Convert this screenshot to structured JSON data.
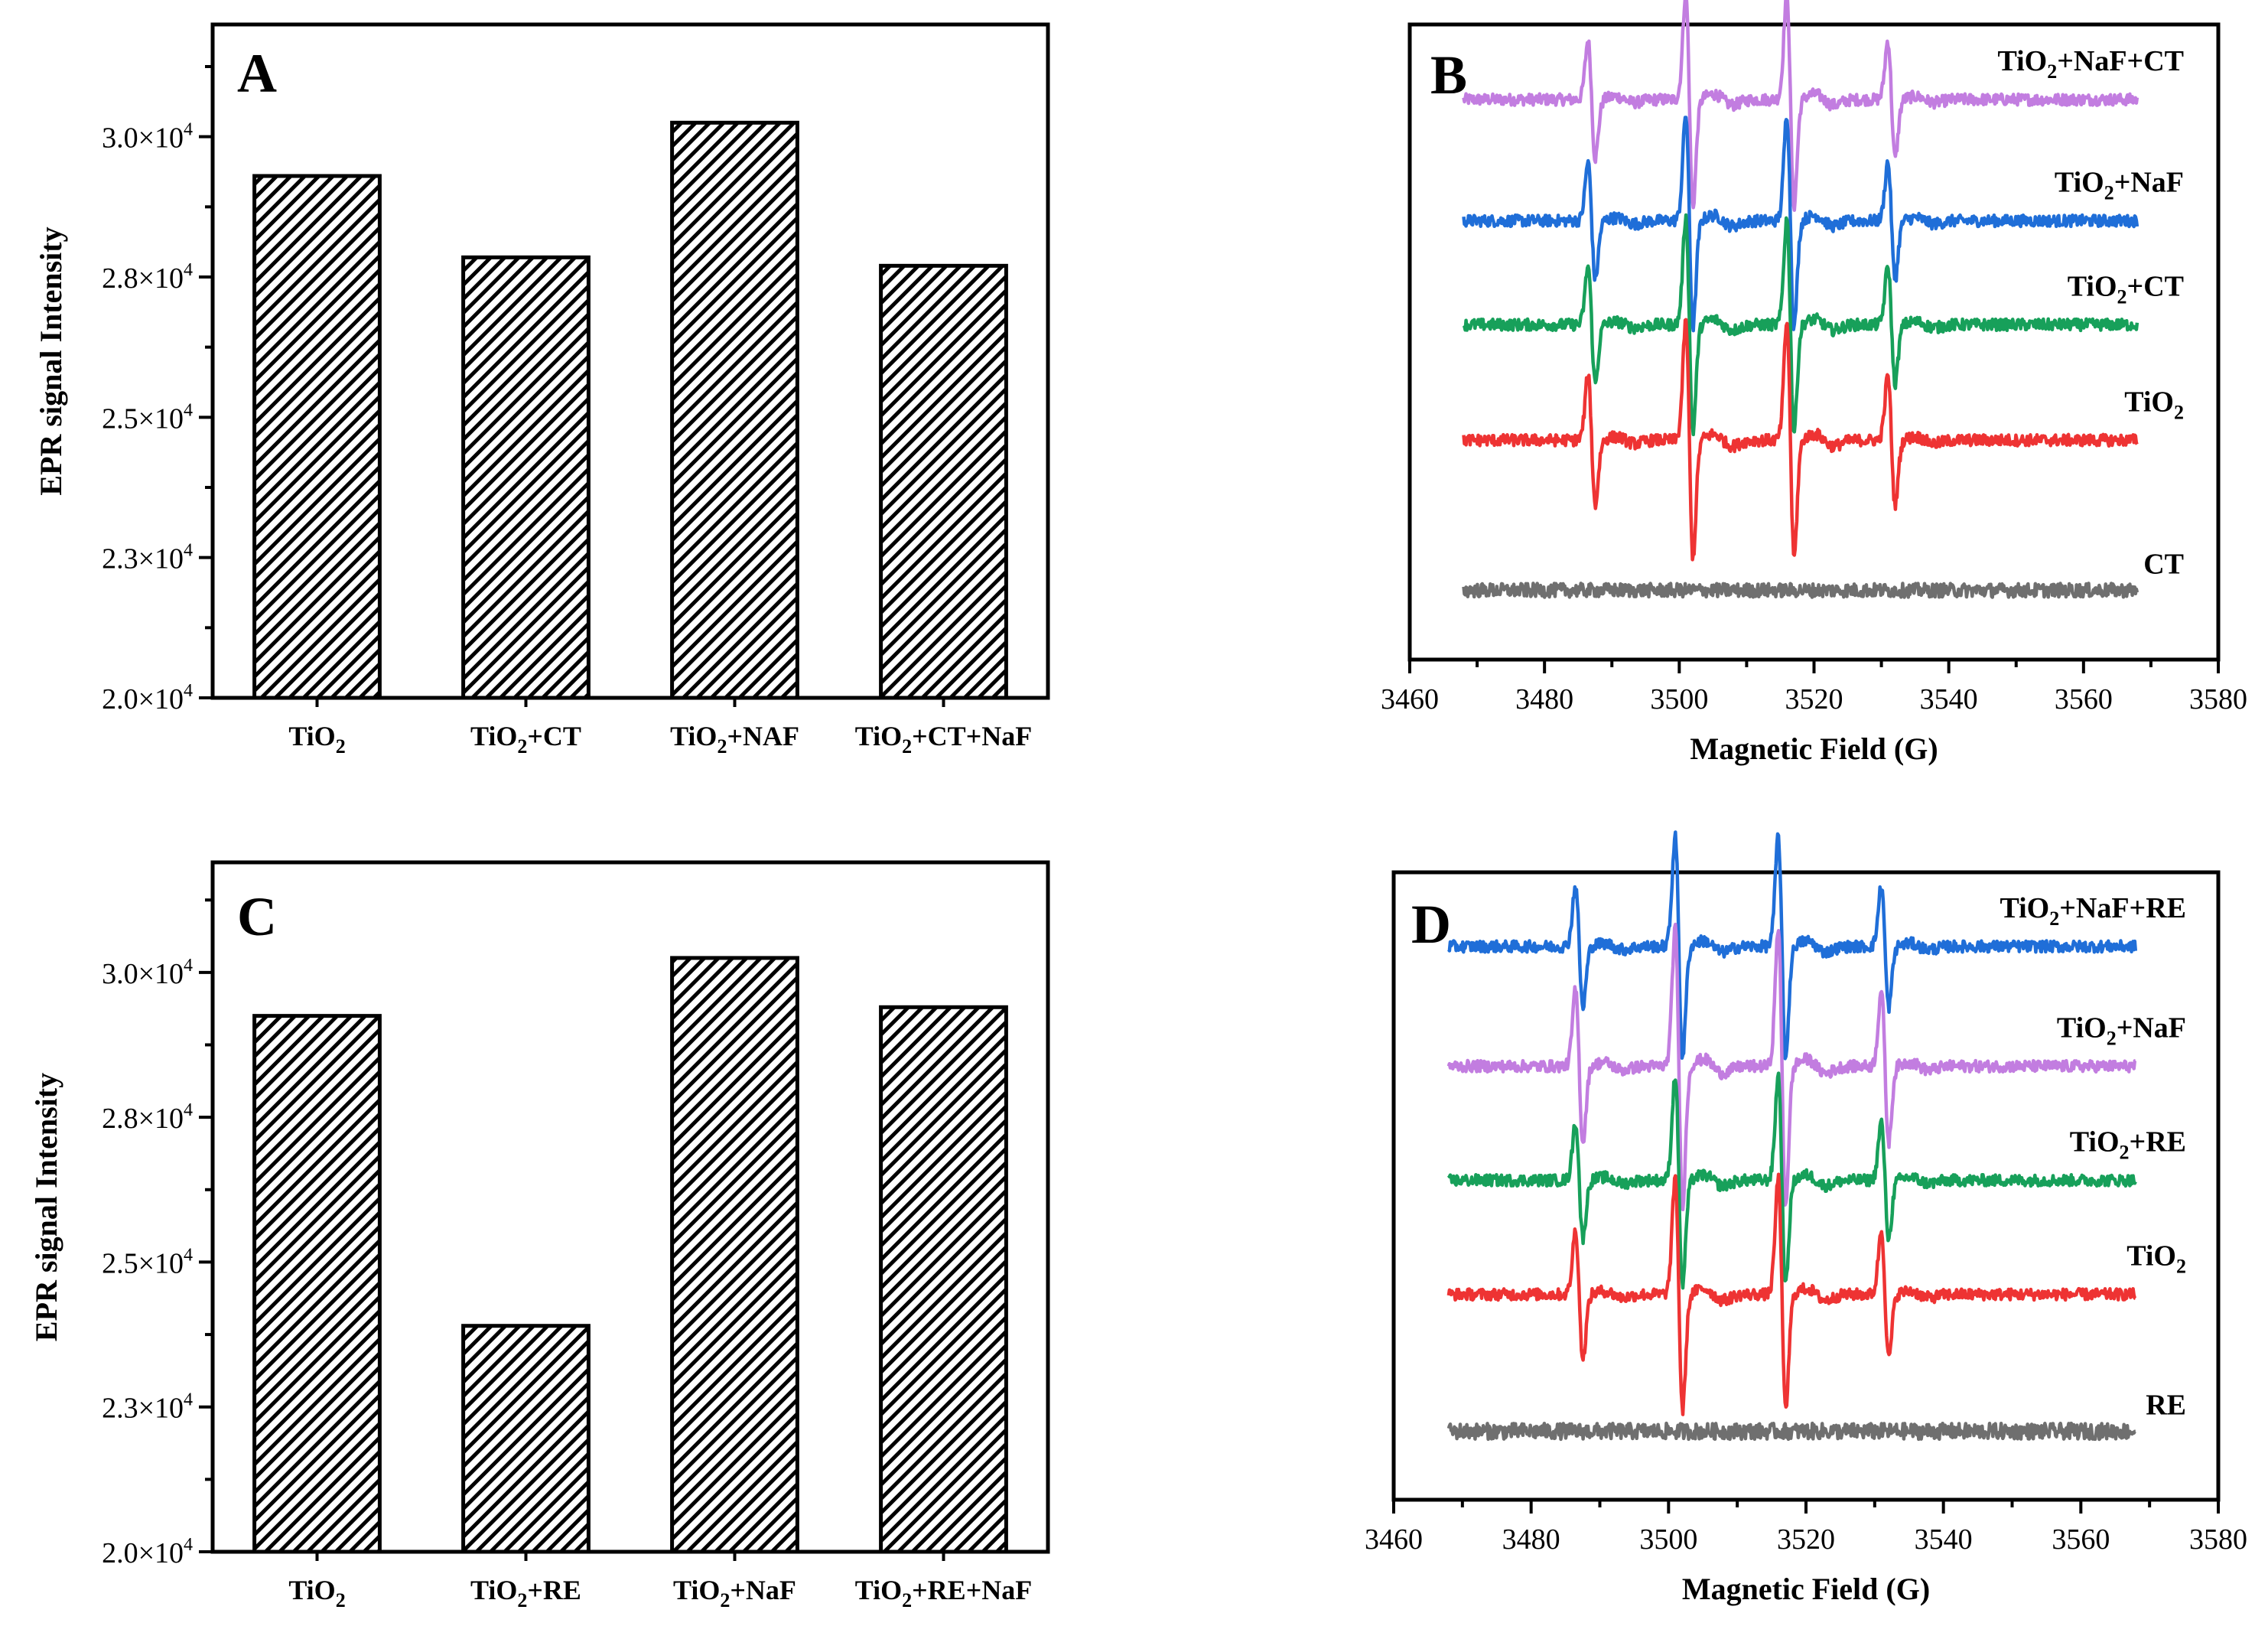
{
  "chart_data": [
    {
      "panel": "A",
      "type": "bar",
      "categories": [
        "TiO2",
        "TiO2+CT",
        "TiO2+NAF",
        "TiO2+CT+NaF"
      ],
      "category_labels": [
        {
          "base": "TiO",
          "sub": "2",
          "rest": ""
        },
        {
          "base": "TiO",
          "sub": "2",
          "rest": "+CT"
        },
        {
          "base": "TiO",
          "sub": "2",
          "rest": "+NAF"
        },
        {
          "base": "TiO",
          "sub": "2",
          "rest": "+CT+NaF"
        }
      ],
      "values": [
        29300,
        27850,
        30250,
        27700
      ],
      "ylabel": "EPR signal Intensity",
      "ylim": [
        20000,
        32000
      ],
      "yticks": [
        20000,
        22500,
        25000,
        27500,
        30000
      ],
      "ytick_labels": [
        {
          "mant": "2.0×10",
          "exp": "4"
        },
        {
          "mant": "2.3×10",
          "exp": "4"
        },
        {
          "mant": "2.5×10",
          "exp": "4"
        },
        {
          "mant": "2.8×10",
          "exp": "4"
        },
        {
          "mant": "3.0×10",
          "exp": "4"
        }
      ],
      "pattern": "diagonal-hatch",
      "bar_color": "#000000"
    },
    {
      "panel": "B",
      "type": "line",
      "xlabel": "Magnetic Field (G)",
      "xlim": [
        3460,
        3580
      ],
      "xticks": [
        3460,
        3480,
        3500,
        3520,
        3540,
        3560,
        3580
      ],
      "x_range_data": [
        3468,
        3568
      ],
      "peak_centers": [
        3487,
        3501.5,
        3516.5,
        3531.5
      ],
      "series": [
        {
          "name": "TiO2+NaF+CT",
          "label": {
            "base": "TiO",
            "sub": "2",
            "rest": "+NaF+CT"
          },
          "color": "#c27de0",
          "amplitude": 0.95,
          "offset": 4.25,
          "noise": 0.05
        },
        {
          "name": "TiO2+NaF",
          "label": {
            "base": "TiO",
            "sub": "2",
            "rest": "+NaF"
          },
          "color": "#1f6ed8",
          "amplitude": 0.95,
          "offset": 3.2,
          "noise": 0.05
        },
        {
          "name": "TiO2+CT",
          "label": {
            "base": "TiO",
            "sub": "2",
            "rest": "+CT"
          },
          "color": "#17a05a",
          "amplitude": 0.95,
          "offset": 2.3,
          "noise": 0.05
        },
        {
          "name": "TiO2",
          "label": {
            "base": "TiO",
            "sub": "2",
            "rest": ""
          },
          "color": "#ee3333",
          "amplitude": 1.05,
          "offset": 1.3,
          "noise": 0.05
        },
        {
          "name": "CT",
          "label": {
            "base": "CT",
            "sub": "",
            "rest": ""
          },
          "color": "#6f6f6f",
          "amplitude": 0.0,
          "offset": 0.0,
          "noise": 0.06
        }
      ],
      "ylim": [
        -0.6,
        4.9
      ]
    },
    {
      "panel": "C",
      "type": "bar",
      "categories": [
        "TiO2",
        "TiO2+RE",
        "TiO2+NaF",
        "TiO2+RE+NaF"
      ],
      "category_labels": [
        {
          "base": "TiO",
          "sub": "2",
          "rest": ""
        },
        {
          "base": "TiO",
          "sub": "2",
          "rest": "+RE"
        },
        {
          "base": "TiO",
          "sub": "2",
          "rest": "+NaF"
        },
        {
          "base": "TiO",
          "sub": "2",
          "rest": "+RE+NaF"
        }
      ],
      "values": [
        29250,
        23900,
        30250,
        29400
      ],
      "ylabel": "EPR signal Intensity",
      "ylim": [
        20000,
        31900
      ],
      "yticks": [
        20000,
        22500,
        25000,
        27500,
        30000
      ],
      "ytick_labels": [
        {
          "mant": "2.0×10",
          "exp": "4"
        },
        {
          "mant": "2.3×10",
          "exp": "4"
        },
        {
          "mant": "2.5×10",
          "exp": "4"
        },
        {
          "mant": "2.8×10",
          "exp": "4"
        },
        {
          "mant": "3.0×10",
          "exp": "4"
        }
      ],
      "pattern": "diagonal-hatch",
      "bar_color": "#000000"
    },
    {
      "panel": "D",
      "type": "line",
      "xlabel": "Magnetic Field (G)",
      "xlim": [
        3460,
        3580
      ],
      "xticks": [
        3460,
        3480,
        3500,
        3520,
        3540,
        3560,
        3580
      ],
      "x_range_data": [
        3468,
        3568
      ],
      "peak_centers": [
        3487,
        3501.5,
        3516.5,
        3531.5
      ],
      "series": [
        {
          "name": "TiO2+NaF+RE",
          "label": {
            "base": "TiO",
            "sub": "2",
            "rest": "+NaF+RE"
          },
          "color": "#1f6ed8",
          "amplitude": 1.0,
          "offset": 4.25,
          "noise": 0.05
        },
        {
          "name": "TiO2+NaF",
          "label": {
            "base": "TiO",
            "sub": "2",
            "rest": "+NaF"
          },
          "color": "#c27de0",
          "amplitude": 1.25,
          "offset": 3.2,
          "noise": 0.05
        },
        {
          "name": "TiO2+RE",
          "label": {
            "base": "TiO",
            "sub": "2",
            "rest": "+RE"
          },
          "color": "#17a05a",
          "amplitude": 0.95,
          "offset": 2.2,
          "noise": 0.05
        },
        {
          "name": "TiO2",
          "label": {
            "base": "TiO",
            "sub": "2",
            "rest": ""
          },
          "color": "#ee3333",
          "amplitude": 1.05,
          "offset": 1.2,
          "noise": 0.05
        },
        {
          "name": "RE",
          "label": {
            "base": "RE",
            "sub": "",
            "rest": ""
          },
          "color": "#6f6f6f",
          "amplitude": 0.0,
          "offset": 0.0,
          "noise": 0.07
        }
      ],
      "ylim": [
        -0.6,
        4.9
      ]
    }
  ]
}
